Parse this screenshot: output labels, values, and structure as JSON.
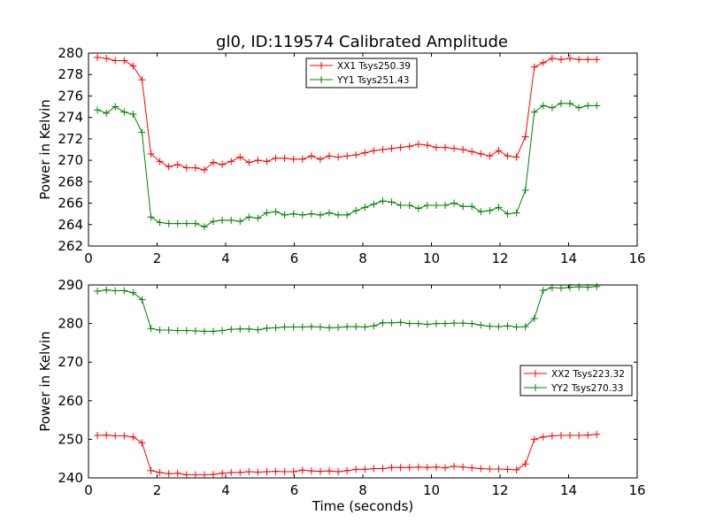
{
  "chart_data": [
    {
      "type": "line",
      "title": "gl0, ID:119574 Calibrated Amplitude",
      "xlabel": "",
      "ylabel": "Power in Kelvin",
      "xlim": [
        0,
        16
      ],
      "ylim": [
        262,
        280
      ],
      "xticks": [
        0,
        2,
        4,
        6,
        8,
        10,
        12,
        14,
        16
      ],
      "yticks": [
        262,
        264,
        266,
        268,
        270,
        272,
        274,
        276,
        278,
        280
      ],
      "grid": false,
      "legend_position": "top-center",
      "x": [
        0.26,
        0.52,
        0.78,
        1.04,
        1.3,
        1.56,
        1.82,
        2.08,
        2.34,
        2.6,
        2.86,
        3.12,
        3.38,
        3.64,
        3.9,
        4.16,
        4.42,
        4.68,
        4.94,
        5.2,
        5.46,
        5.72,
        5.98,
        6.24,
        6.5,
        6.76,
        7.02,
        7.28,
        7.54,
        7.8,
        8.06,
        8.32,
        8.58,
        8.84,
        9.1,
        9.36,
        9.62,
        9.88,
        10.14,
        10.4,
        10.66,
        10.92,
        11.18,
        11.44,
        11.7,
        11.96,
        12.22,
        12.48,
        12.74,
        13.0,
        13.26,
        13.52,
        13.78,
        14.04,
        14.3,
        14.56,
        14.82
      ],
      "series": [
        {
          "name": "XX1 Tsys250.39",
          "color": "#ff0000",
          "values": [
            279.6,
            279.5,
            279.3,
            279.3,
            278.8,
            277.5,
            270.6,
            269.9,
            269.4,
            269.6,
            269.3,
            269.3,
            269.1,
            269.8,
            269.6,
            269.9,
            270.3,
            269.8,
            270.0,
            269.9,
            270.2,
            270.2,
            270.1,
            270.1,
            270.4,
            270.1,
            270.4,
            270.3,
            270.4,
            270.5,
            270.7,
            270.9,
            271.0,
            271.1,
            271.2,
            271.3,
            271.5,
            271.4,
            271.2,
            271.2,
            271.1,
            271.0,
            270.8,
            270.6,
            270.4,
            270.9,
            270.4,
            270.3,
            272.2,
            278.7,
            279.1,
            279.5,
            279.4,
            279.5,
            279.4,
            279.4,
            279.4
          ]
        },
        {
          "name": "YY1 Tsys251.43",
          "color": "#008000",
          "values": [
            274.7,
            274.4,
            275.0,
            274.5,
            274.3,
            272.6,
            264.7,
            264.2,
            264.1,
            264.1,
            264.1,
            264.1,
            263.8,
            264.3,
            264.4,
            264.4,
            264.3,
            264.7,
            264.6,
            265.1,
            265.2,
            264.9,
            265.0,
            264.9,
            265.0,
            264.9,
            265.1,
            264.9,
            264.9,
            265.3,
            265.6,
            265.9,
            266.2,
            266.1,
            265.8,
            265.8,
            265.5,
            265.8,
            265.8,
            265.8,
            266.0,
            265.7,
            265.7,
            265.2,
            265.3,
            265.6,
            265.0,
            265.1,
            267.2,
            274.5,
            275.1,
            274.9,
            275.3,
            275.3,
            274.9,
            275.1,
            275.1
          ]
        }
      ]
    },
    {
      "type": "line",
      "title": "",
      "xlabel": "Time (seconds)",
      "ylabel": "Power in Kelvin",
      "xlim": [
        0,
        16
      ],
      "ylim": [
        240,
        290
      ],
      "xticks": [
        0,
        2,
        4,
        6,
        8,
        10,
        12,
        14,
        16
      ],
      "yticks": [
        240,
        250,
        260,
        270,
        280,
        290
      ],
      "grid": false,
      "legend_position": "center-right",
      "x": [
        0.26,
        0.52,
        0.78,
        1.04,
        1.3,
        1.56,
        1.82,
        2.08,
        2.34,
        2.6,
        2.86,
        3.12,
        3.38,
        3.64,
        3.9,
        4.16,
        4.42,
        4.68,
        4.94,
        5.2,
        5.46,
        5.72,
        5.98,
        6.24,
        6.5,
        6.76,
        7.02,
        7.28,
        7.54,
        7.8,
        8.06,
        8.32,
        8.58,
        8.84,
        9.1,
        9.36,
        9.62,
        9.88,
        10.14,
        10.4,
        10.66,
        10.92,
        11.18,
        11.44,
        11.7,
        11.96,
        12.22,
        12.48,
        12.74,
        13.0,
        13.26,
        13.52,
        13.78,
        14.04,
        14.3,
        14.56,
        14.82
      ],
      "series": [
        {
          "name": "XX2 Tsys223.32",
          "color": "#ff0000",
          "values": [
            251.0,
            251.1,
            250.9,
            250.9,
            250.6,
            249.1,
            241.9,
            241.4,
            241.1,
            241.2,
            240.8,
            240.8,
            240.8,
            240.9,
            241.2,
            241.4,
            241.4,
            241.6,
            241.5,
            241.6,
            241.7,
            241.6,
            241.6,
            242.0,
            241.8,
            241.7,
            241.8,
            241.6,
            241.9,
            242.2,
            242.2,
            242.4,
            242.4,
            242.7,
            242.7,
            242.7,
            242.8,
            242.7,
            242.8,
            242.6,
            243.0,
            242.8,
            242.6,
            242.4,
            242.3,
            242.3,
            242.2,
            242.1,
            243.6,
            250.0,
            250.6,
            250.9,
            251.0,
            251.0,
            251.0,
            251.1,
            251.3
          ]
        },
        {
          "name": "YY2 Tsys270.33",
          "color": "#008000",
          "values": [
            288.4,
            288.7,
            288.5,
            288.5,
            288.0,
            286.2,
            278.7,
            278.3,
            278.3,
            278.2,
            278.2,
            278.1,
            278.0,
            278.0,
            278.2,
            278.5,
            278.6,
            278.6,
            278.4,
            278.8,
            278.9,
            279.1,
            279.1,
            279.1,
            279.2,
            279.1,
            278.9,
            279.0,
            279.2,
            279.2,
            279.1,
            279.4,
            280.2,
            280.2,
            280.3,
            280.0,
            280.0,
            279.8,
            280.0,
            280.0,
            280.1,
            280.1,
            280.0,
            279.6,
            279.3,
            279.2,
            279.4,
            279.1,
            279.2,
            281.3,
            288.6,
            289.3,
            289.2,
            289.4,
            289.5,
            289.4,
            289.6
          ]
        }
      ]
    }
  ]
}
